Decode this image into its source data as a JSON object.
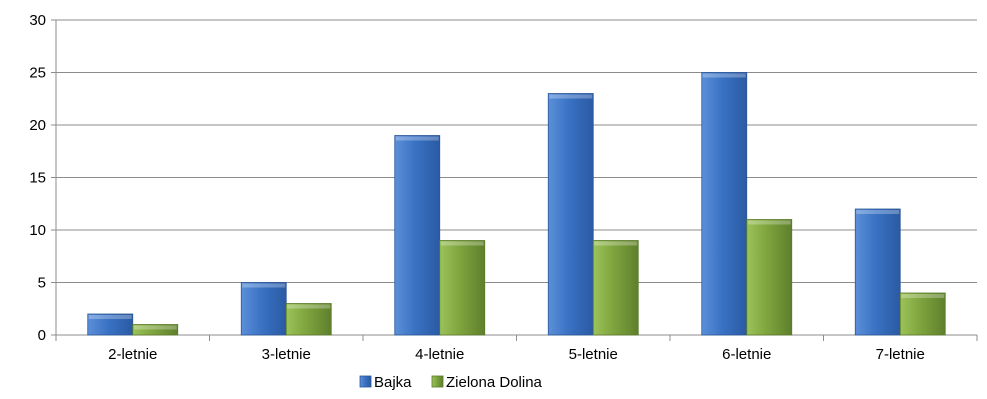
{
  "chart_data": {
    "type": "bar",
    "categories": [
      "2-letnie",
      "3-letnie",
      "4-letnie",
      "5-letnie",
      "6-letnie",
      "7-letnie"
    ],
    "series": [
      {
        "name": "Bajka",
        "values": [
          2,
          5,
          19,
          23,
          25,
          12
        ],
        "color": "#3a72c4"
      },
      {
        "name": "Zielona Dolina",
        "values": [
          1,
          3,
          9,
          9,
          11,
          4
        ],
        "color": "#7ea43e"
      }
    ],
    "title": "",
    "xlabel": "",
    "ylabel": "",
    "ylim": [
      0,
      30
    ],
    "yticks": [
      0,
      5,
      10,
      15,
      20,
      25,
      30
    ],
    "grid": true,
    "legend": "bottom"
  }
}
